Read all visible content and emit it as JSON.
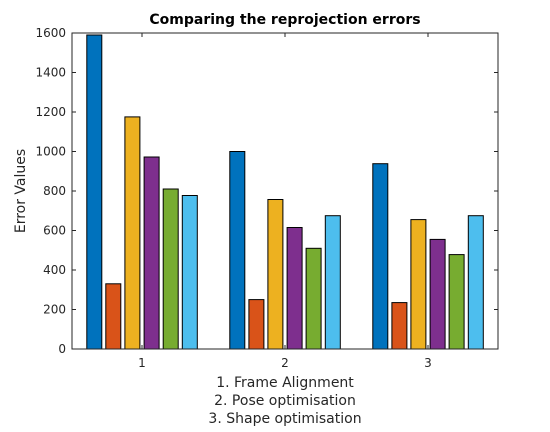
{
  "chart_data": {
    "type": "bar",
    "title": "Comparing the reprojection errors",
    "ylabel": "Error Values",
    "xlabel_lines": [
      "1. Frame Alignment",
      "2. Pose optimisation",
      "3. Shape optimisation"
    ],
    "categories": [
      "1",
      "2",
      "3"
    ],
    "ylim": [
      0,
      1600
    ],
    "yticks": [
      0,
      200,
      400,
      600,
      800,
      1000,
      1200,
      1400,
      1600
    ],
    "grid": false,
    "legend": "none",
    "series": [
      {
        "color": "#0072BD",
        "values": [
          1590,
          1000,
          938
        ]
      },
      {
        "color": "#D95319",
        "values": [
          330,
          250,
          235
        ]
      },
      {
        "color": "#EDB120",
        "values": [
          1175,
          757,
          655
        ]
      },
      {
        "color": "#7E2F8E",
        "values": [
          972,
          615,
          555
        ]
      },
      {
        "color": "#77AC30",
        "values": [
          810,
          510,
          478
        ]
      },
      {
        "color": "#4DBEEE",
        "values": [
          777,
          675,
          675
        ]
      }
    ]
  }
}
